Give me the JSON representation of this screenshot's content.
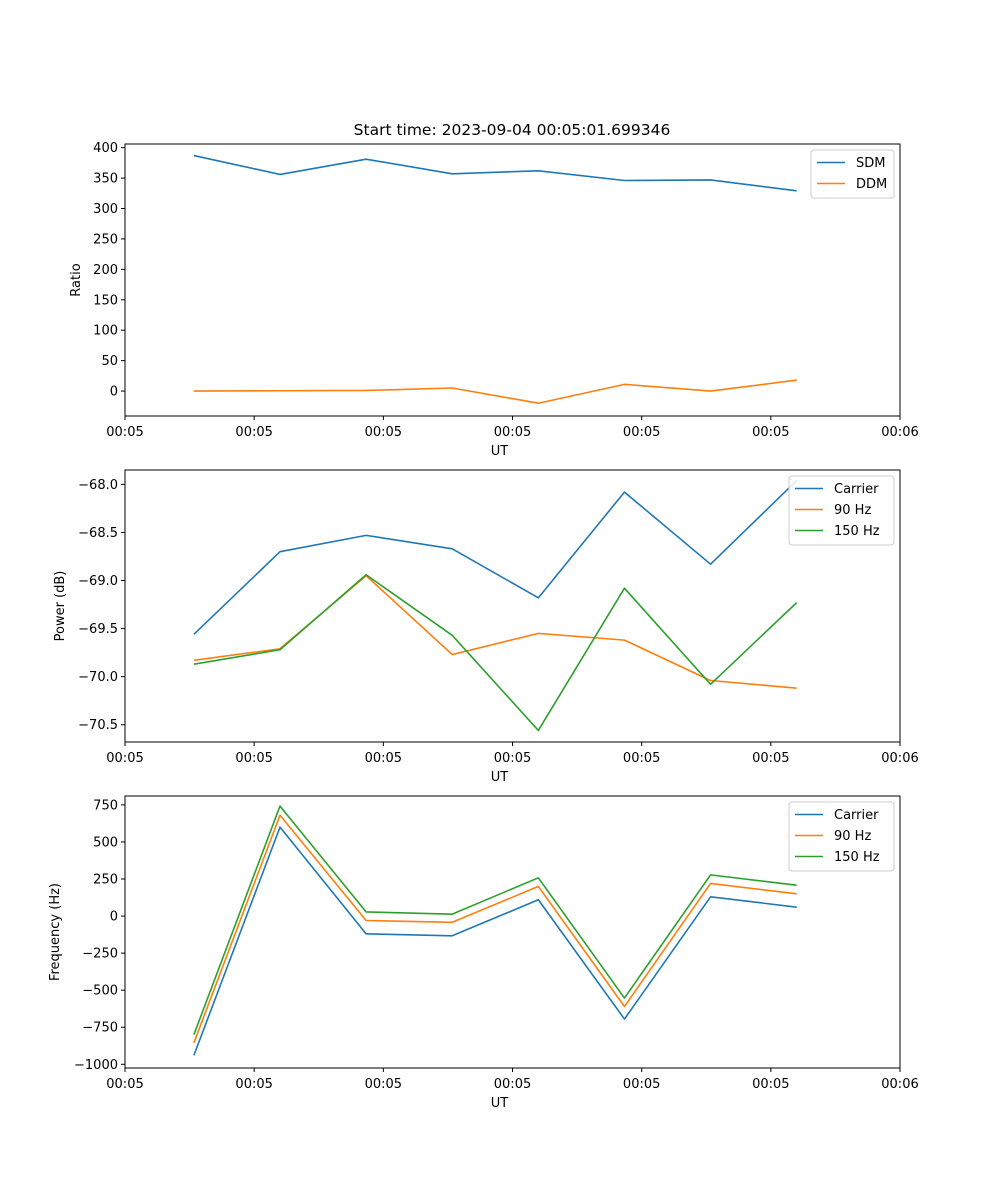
{
  "figure_title": "Start time: 2023-09-04 00:05:01.699346",
  "colors": {
    "blue": "#1f77b4",
    "orange": "#ff7f0e",
    "green": "#2ca02c"
  },
  "chart_data": [
    {
      "type": "line",
      "title": "Start time: 2023-09-04 00:05:01.699346",
      "xlabel": "UT",
      "ylabel": "Ratio",
      "x": [
        1,
        2,
        3,
        4,
        5,
        6,
        7,
        8
      ],
      "xlim": [
        0.2,
        9.2
      ],
      "xticks": [
        0.2,
        1.7,
        3.2,
        4.7,
        6.2,
        7.7,
        9.2
      ],
      "xtick_labels": [
        "00:05",
        "00:05",
        "00:05",
        "00:05",
        "00:05",
        "00:05",
        "00:06"
      ],
      "ylim": [
        -41,
        406
      ],
      "yticks": [
        0,
        50,
        100,
        150,
        200,
        250,
        300,
        350,
        400
      ],
      "ytick_labels": [
        "0",
        "50",
        "100",
        "150",
        "200",
        "250",
        "300",
        "350",
        "400"
      ],
      "legend_position": "top-right",
      "series": [
        {
          "name": "SDM",
          "color": "#1f77b4",
          "values": [
            387,
            356,
            381,
            357,
            362,
            346,
            347,
            329
          ]
        },
        {
          "name": "DDM",
          "color": "#ff7f0e",
          "values": [
            0,
            0.5,
            1,
            5,
            -20,
            11,
            0,
            18
          ]
        }
      ]
    },
    {
      "type": "line",
      "xlabel": "UT",
      "ylabel": "Power (dB)",
      "x": [
        1,
        2,
        3,
        4,
        5,
        6,
        7,
        8
      ],
      "xlim": [
        0.2,
        9.2
      ],
      "xticks": [
        0.2,
        1.7,
        3.2,
        4.7,
        6.2,
        7.7,
        9.2
      ],
      "xtick_labels": [
        "00:05",
        "00:05",
        "00:05",
        "00:05",
        "00:05",
        "00:05",
        "00:06"
      ],
      "ylim": [
        -70.68,
        -67.85
      ],
      "yticks": [
        -68.0,
        -68.5,
        -69.0,
        -69.5,
        -70.0,
        -70.5
      ],
      "ytick_labels": [
        "−68.0",
        "−68.5",
        "−69.0",
        "−69.5",
        "−70.0",
        "−70.5"
      ],
      "legend_position": "top-right",
      "series": [
        {
          "name": "Carrier",
          "color": "#1f77b4",
          "values": [
            -69.56,
            -68.7,
            -68.53,
            -68.67,
            -69.18,
            -68.08,
            -68.83,
            -67.96
          ]
        },
        {
          "name": "90 Hz",
          "color": "#ff7f0e",
          "values": [
            -69.83,
            -69.71,
            -68.95,
            -69.77,
            -69.55,
            -69.62,
            -70.04,
            -70.12
          ]
        },
        {
          "name": "150 Hz",
          "color": "#2ca02c",
          "values": [
            -69.87,
            -69.72,
            -68.94,
            -69.57,
            -70.56,
            -69.08,
            -70.08,
            -69.23
          ]
        }
      ]
    },
    {
      "type": "line",
      "xlabel": "UT",
      "ylabel": "Frequency (Hz)",
      "x": [
        1,
        2,
        3,
        4,
        5,
        6,
        7,
        8
      ],
      "xlim": [
        0.2,
        9.2
      ],
      "xticks": [
        0.2,
        1.7,
        3.2,
        4.7,
        6.2,
        7.7,
        9.2
      ],
      "xtick_labels": [
        "00:05",
        "00:05",
        "00:05",
        "00:05",
        "00:05",
        "00:05",
        "00:06"
      ],
      "ylim": [
        -1025,
        810
      ],
      "yticks": [
        750,
        500,
        250,
        0,
        -250,
        -500,
        -750,
        -1000
      ],
      "ytick_labels": [
        "750",
        "500",
        "250",
        "0",
        "−250",
        "−500",
        "−750",
        "−1000"
      ],
      "legend_position": "top-right",
      "series": [
        {
          "name": "Carrier",
          "color": "#1f77b4",
          "values": [
            -940,
            600,
            -120,
            -133,
            110,
            -695,
            130,
            60
          ]
        },
        {
          "name": "90 Hz",
          "color": "#ff7f0e",
          "values": [
            -855,
            680,
            -30,
            -42,
            200,
            -610,
            220,
            150
          ]
        },
        {
          "name": "150 Hz",
          "color": "#2ca02c",
          "values": [
            -800,
            742,
            28,
            13,
            258,
            -553,
            278,
            208
          ]
        }
      ]
    }
  ]
}
